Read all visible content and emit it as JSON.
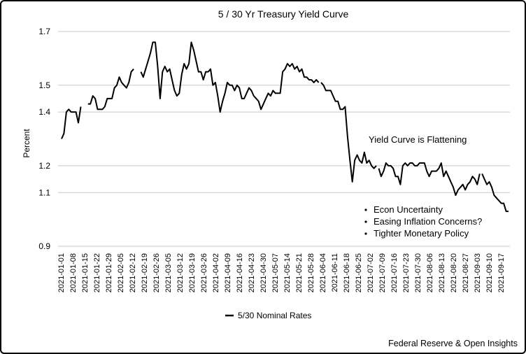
{
  "chart_data": {
    "type": "line",
    "title": "5 / 30 Yr Treasury Yield Curve",
    "ylabel": "Percent",
    "xlabel": "",
    "ylim": [
      0.9,
      1.7
    ],
    "yticks": [
      "0.9",
      "1.1",
      "1.2",
      "1.4",
      "1.5",
      "1.7"
    ],
    "x_tick_labels": [
      "2021-01-01",
      "2021-01-08",
      "2021-01-15",
      "2021-01-22",
      "2021-01-29",
      "2021-02-05",
      "2021-02-12",
      "2021-02-19",
      "2021-02-26",
      "2021-03-05",
      "2021-03-12",
      "2021-03-19",
      "2021-03-26",
      "2021-04-02",
      "2021-04-09",
      "2021-04-16",
      "2021-04-23",
      "2021-04-30",
      "2021-05-07",
      "2021-05-14",
      "2021-05-21",
      "2021-05-28",
      "2021-06-04",
      "2021-06-11",
      "2021-06-18",
      "2021-06-25",
      "2021-07-02",
      "2021-07-09",
      "2021-07-16",
      "2021-07-23",
      "2021-07-30",
      "2021-08-06",
      "2021-08-13",
      "2021-08-20",
      "2021-08-27",
      "2021-09-03",
      "2021-09-10",
      "2021-09-17"
    ],
    "grid": true,
    "legend_position": "bottom",
    "series": [
      {
        "name": "5/30 Nominal Rates",
        "color": "#000000",
        "segments": [
          [
            1.3,
            1.32,
            1.4,
            1.41,
            1.4,
            1.4,
            1.4,
            1.36,
            1.42,
            null,
            1.42
          ],
          [
            1.43,
            1.43,
            1.46,
            1.45,
            1.41,
            1.41,
            1.41,
            1.42,
            1.45,
            1.45,
            1.45,
            1.49,
            1.5,
            1.53,
            1.51,
            1.5,
            1.49,
            1.51,
            1.55,
            1.56,
            null,
            1.53
          ],
          [
            1.55,
            1.53,
            1.56,
            1.59,
            1.62,
            1.66,
            1.66,
            1.57,
            1.45,
            1.55,
            1.57,
            1.55,
            1.56,
            1.52,
            1.48,
            1.46,
            1.47,
            1.54,
            1.58,
            1.56,
            1.58,
            1.66,
            1.63,
            1.59,
            1.55,
            1.55,
            1.52,
            1.55,
            1.55,
            1.56,
            1.5,
            1.51,
            1.46,
            1.4,
            1.44,
            1.47,
            1.51,
            1.5,
            1.5,
            1.48,
            1.5,
            1.49,
            1.45,
            1.45,
            1.47,
            1.49,
            1.48,
            1.46,
            1.45,
            1.44,
            1.41,
            1.43,
            1.45,
            1.47,
            1.46,
            1.48,
            1.47,
            1.47,
            1.47,
            1.55,
            1.56,
            1.58,
            1.57,
            1.58,
            1.56,
            1.57,
            1.55,
            1.56,
            1.53,
            1.53,
            1.52,
            1.52,
            1.51,
            1.52,
            1.51
          ],
          [
            1.51,
            1.5,
            1.48,
            1.48,
            1.48,
            1.46,
            1.44,
            1.44,
            1.41,
            1.41,
            1.42,
            1.31,
            1.22,
            1.14,
            1.22,
            1.24,
            1.22,
            1.21,
            1.25,
            1.21,
            1.22,
            1.2,
            1.19,
            1.2
          ],
          [
            1.19,
            1.16,
            1.18,
            1.21,
            1.2,
            1.2,
            1.19,
            1.16,
            1.16,
            1.13,
            1.2,
            1.21,
            1.2,
            1.21,
            1.21,
            1.2,
            1.2,
            1.21,
            1.21,
            1.21,
            1.18,
            1.16,
            1.18,
            1.18,
            1.18,
            1.19,
            1.21,
            1.16,
            1.18,
            1.16,
            1.14,
            1.12,
            1.09,
            1.11,
            1.12,
            1.13,
            1.11,
            1.13,
            1.14,
            1.16,
            1.15,
            1.13,
            1.17
          ],
          [
            1.17,
            1.15,
            1.13,
            1.14,
            1.12,
            1.09,
            1.08,
            1.07,
            1.06,
            1.06,
            1.03,
            1.03
          ]
        ]
      }
    ],
    "annotations": {
      "heading": "Yield Curve is Flattening",
      "bullets": [
        "Econ Uncertainty",
        "Easing Inflation Concerns?",
        "Tighter Monetary Policy"
      ]
    },
    "source": "Federal Reserve & Open Insights"
  }
}
